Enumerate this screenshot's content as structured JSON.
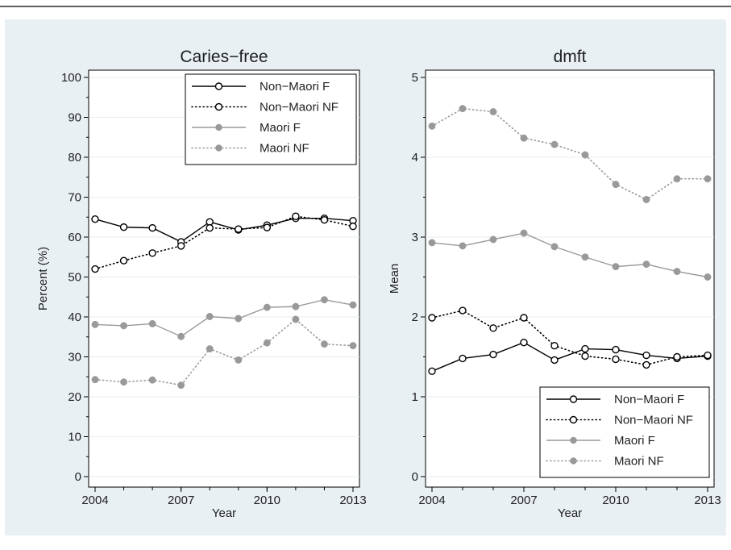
{
  "chart_data": [
    {
      "type": "line",
      "title": "Caries−free",
      "xlabel": "Year",
      "ylabel": "Percent (%)",
      "ylim": [
        0,
        100
      ],
      "xlim": [
        2004,
        2013
      ],
      "x": [
        2004,
        2005,
        2006,
        2007,
        2008,
        2009,
        2010,
        2011,
        2012,
        2013
      ],
      "x_ticks": [
        "2004",
        "2007",
        "2010",
        "2013"
      ],
      "y_ticks": [
        "0",
        "10",
        "20",
        "30",
        "40",
        "50",
        "60",
        "70",
        "80",
        "90",
        "100"
      ],
      "legend_position": "top-right",
      "grid": true,
      "series": [
        {
          "name": "Non−Maori F",
          "values": [
            64.5,
            62.5,
            62.3,
            58.8,
            63.8,
            61.8,
            63.0,
            64.7,
            64.7,
            64.1
          ],
          "color": "#000000",
          "marker": "hollow-circle",
          "line": "solid"
        },
        {
          "name": "Non−Maori NF",
          "values": [
            52.0,
            54.1,
            56.0,
            57.8,
            62.3,
            62.0,
            62.4,
            65.2,
            64.3,
            62.7
          ],
          "color": "#000000",
          "marker": "hollow-circle",
          "line": "dotted"
        },
        {
          "name": "Maori F",
          "values": [
            38.1,
            37.8,
            38.3,
            35.1,
            40.1,
            39.6,
            42.4,
            42.6,
            44.3,
            43.0
          ],
          "color": "#999999",
          "marker": "filled-circle",
          "line": "solid"
        },
        {
          "name": "Maori NF",
          "values": [
            24.3,
            23.7,
            24.2,
            22.9,
            32.0,
            29.2,
            33.5,
            39.4,
            33.2,
            32.8
          ],
          "color": "#999999",
          "marker": "filled-circle",
          "line": "dotted"
        }
      ]
    },
    {
      "type": "line",
      "title": "dmft",
      "xlabel": "Year",
      "ylabel": "Mean",
      "ylim": [
        0,
        5
      ],
      "xlim": [
        2004,
        2013
      ],
      "x": [
        2004,
        2005,
        2006,
        2007,
        2008,
        2009,
        2010,
        2011,
        2012,
        2013
      ],
      "x_ticks": [
        "2004",
        "2007",
        "2010",
        "2013"
      ],
      "y_ticks": [
        "0",
        "1",
        "2",
        "3",
        "4",
        "5"
      ],
      "legend_position": "bottom-right",
      "grid": true,
      "series": [
        {
          "name": "Non−Maori F",
          "values": [
            1.32,
            1.48,
            1.53,
            1.68,
            1.46,
            1.6,
            1.59,
            1.52,
            1.48,
            1.51
          ],
          "color": "#000000",
          "marker": "hollow-circle",
          "line": "solid"
        },
        {
          "name": "Non−Maori NF",
          "values": [
            1.99,
            2.08,
            1.86,
            1.99,
            1.64,
            1.51,
            1.47,
            1.4,
            1.5,
            1.52
          ],
          "color": "#000000",
          "marker": "hollow-circle",
          "line": "dotted"
        },
        {
          "name": "Maori F",
          "values": [
            2.93,
            2.89,
            2.97,
            3.05,
            2.88,
            2.75,
            2.63,
            2.66,
            2.57,
            2.5
          ],
          "color": "#999999",
          "marker": "filled-circle",
          "line": "solid"
        },
        {
          "name": "Maori NF",
          "values": [
            4.39,
            4.61,
            4.57,
            4.24,
            4.16,
            4.03,
            3.66,
            3.47,
            3.73,
            3.73
          ],
          "color": "#999999",
          "marker": "filled-circle",
          "line": "dotted"
        }
      ]
    }
  ]
}
